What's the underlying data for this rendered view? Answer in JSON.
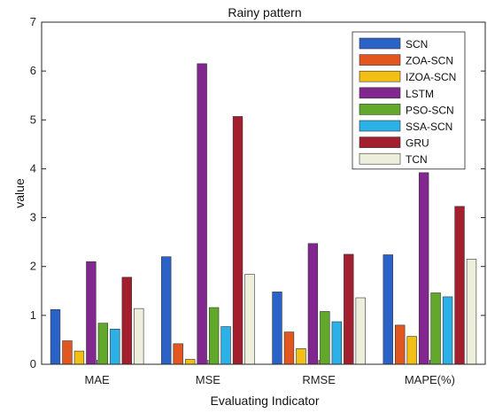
{
  "chart_data": {
    "type": "bar",
    "title": "Rainy pattern",
    "xlabel": "Evaluating Indicator",
    "ylabel": "value",
    "ylim": [
      0,
      7
    ],
    "yticks": [
      0,
      1,
      2,
      3,
      4,
      5,
      6,
      7
    ],
    "categories": [
      "MAE",
      "MSE",
      "RMSE",
      "MAPE(%)"
    ],
    "grid": false,
    "legend_position": "top-right",
    "series": [
      {
        "name": "SCN",
        "color": "#2b62c8",
        "values": [
          1.12,
          2.2,
          1.48,
          2.24
        ]
      },
      {
        "name": "ZOA-SCN",
        "color": "#e1571f",
        "values": [
          0.48,
          0.42,
          0.66,
          0.8
        ]
      },
      {
        "name": "IZOA-SCN",
        "color": "#f2bf16",
        "values": [
          0.27,
          0.1,
          0.32,
          0.57
        ]
      },
      {
        "name": "LSTM",
        "color": "#81278f",
        "values": [
          2.1,
          6.15,
          2.47,
          3.92
        ]
      },
      {
        "name": "PSO-SCN",
        "color": "#62a82b",
        "values": [
          0.84,
          1.16,
          1.08,
          1.46
        ]
      },
      {
        "name": "SSA-SCN",
        "color": "#2bb0e8",
        "values": [
          0.72,
          0.77,
          0.87,
          1.38
        ]
      },
      {
        "name": "GRU",
        "color": "#a31f2e",
        "values": [
          1.78,
          5.07,
          2.25,
          3.23
        ]
      },
      {
        "name": "TCN",
        "color": "#eeeedd",
        "values": [
          1.14,
          1.84,
          1.36,
          2.15
        ]
      }
    ]
  }
}
